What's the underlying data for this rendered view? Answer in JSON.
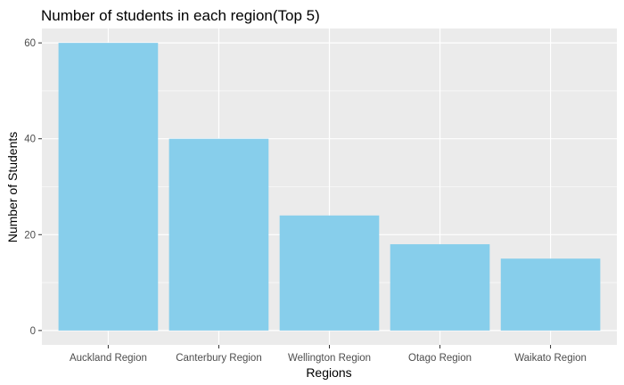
{
  "chart_data": {
    "type": "bar",
    "title": "Number of students in each region(Top 5)",
    "xlabel": "Regions",
    "ylabel": "Number of Students",
    "categories": [
      "Auckland Region",
      "Canterbury Region",
      "Wellington Region",
      "Otago Region",
      "Waikato Region"
    ],
    "values": [
      60,
      40,
      24,
      18,
      15
    ],
    "ylim": [
      0,
      63
    ],
    "yticks": [
      0,
      20,
      40,
      60
    ],
    "grid": true,
    "bar_color": "#87CEEB",
    "panel_color": "#EBEBEB"
  }
}
